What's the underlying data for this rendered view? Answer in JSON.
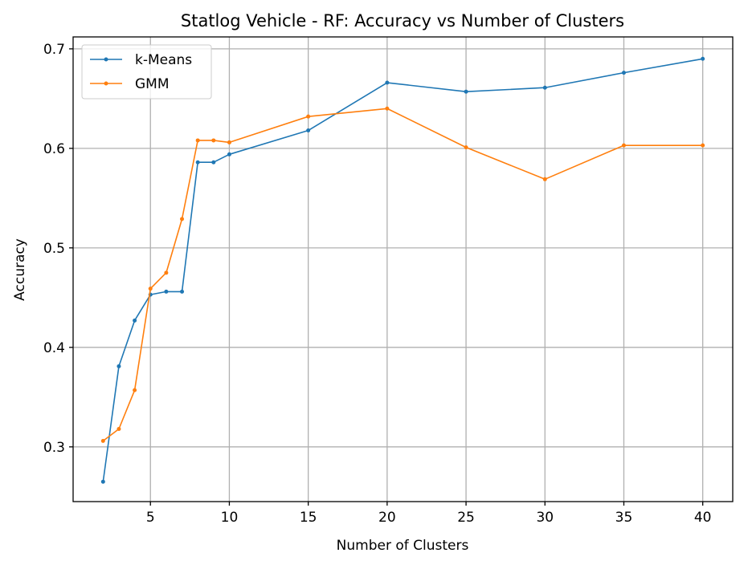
{
  "chart_data": {
    "type": "line",
    "title": "Statlog Vehicle - RF: Accuracy vs Number of Clusters",
    "xlabel": "Number of Clusters",
    "ylabel": "Accuracy",
    "xlim": [
      0.1,
      41.9
    ],
    "ylim": [
      0.245,
      0.712
    ],
    "xticks": [
      5,
      10,
      15,
      20,
      25,
      30,
      35,
      40
    ],
    "yticks": [
      0.3,
      0.4,
      0.5,
      0.6,
      0.7
    ],
    "xtick_labels": [
      "5",
      "10",
      "15",
      "20",
      "25",
      "30",
      "35",
      "40"
    ],
    "ytick_labels": [
      "0.3",
      "0.4",
      "0.5",
      "0.6",
      "0.7"
    ],
    "grid": true,
    "legend_position": "upper-left",
    "x": [
      2,
      3,
      4,
      5,
      6,
      7,
      8,
      9,
      10,
      15,
      20,
      25,
      30,
      35,
      40
    ],
    "series": [
      {
        "name": "k-Means",
        "color": "#1f77b4",
        "values": [
          0.265,
          0.381,
          0.427,
          0.453,
          0.456,
          0.456,
          0.586,
          0.586,
          0.594,
          0.618,
          0.666,
          0.657,
          0.661,
          0.676,
          0.69
        ]
      },
      {
        "name": "GMM",
        "color": "#ff7f0e",
        "values": [
          0.306,
          0.318,
          0.357,
          0.459,
          0.475,
          0.529,
          0.608,
          0.608,
          0.606,
          0.632,
          0.64,
          0.601,
          0.569,
          0.603,
          0.603
        ]
      }
    ]
  }
}
